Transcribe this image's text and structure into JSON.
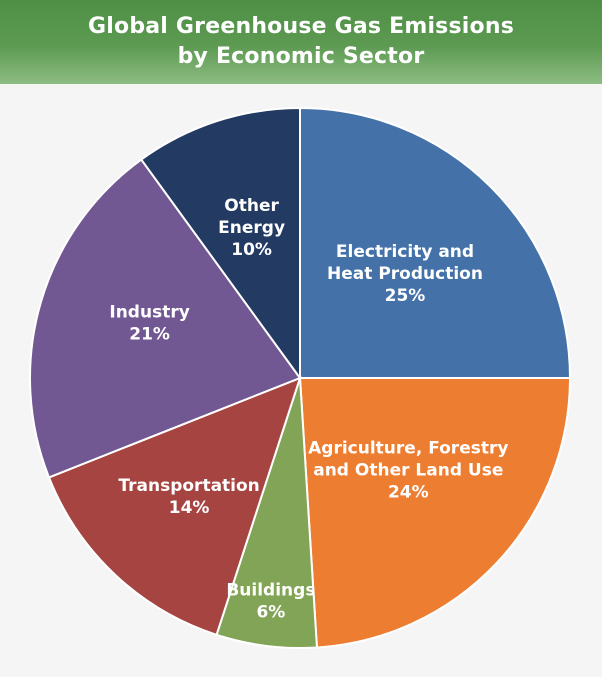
{
  "header": {
    "title_line1": "Global Greenhouse Gas Emissions",
    "title_line2": "by Economic Sector"
  },
  "chart_data": {
    "type": "pie",
    "title": "Global Greenhouse Gas Emissions by Economic Sector",
    "slices": [
      {
        "label": "Electricity and Heat Production",
        "label_lines": [
          "Electricity and",
          "Heat Production"
        ],
        "percent_label": "25%",
        "value": 25,
        "color": "#4472a8"
      },
      {
        "label": "Agriculture, Forestry and Other Land Use",
        "label_lines": [
          "Agriculture, Forestry",
          "and Other Land Use"
        ],
        "percent_label": "24%",
        "value": 24,
        "color": "#ed7d31"
      },
      {
        "label": "Buildings",
        "label_lines": [
          "Buildings"
        ],
        "percent_label": "6%",
        "value": 6,
        "color": "#82a456"
      },
      {
        "label": "Transportation",
        "label_lines": [
          "Transportation"
        ],
        "percent_label": "14%",
        "value": 14,
        "color": "#a64441"
      },
      {
        "label": "Industry",
        "label_lines": [
          "Industry"
        ],
        "percent_label": "21%",
        "value": 21,
        "color": "#725893"
      },
      {
        "label": "Other Energy",
        "label_lines": [
          "Other",
          "Energy"
        ],
        "percent_label": "10%",
        "value": 10,
        "color": "#233a63"
      }
    ]
  }
}
